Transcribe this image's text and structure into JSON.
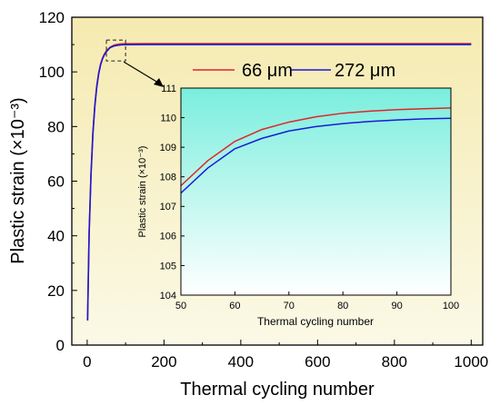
{
  "chart_data": [
    {
      "type": "line",
      "xlabel": "Thermal cycling number",
      "ylabel": "Plastic strain (×10⁻³)",
      "xlim": [
        -40,
        1030
      ],
      "ylim": [
        0,
        120
      ],
      "xticks": [
        0,
        200,
        400,
        600,
        800,
        1000
      ],
      "yticks": [
        0,
        20,
        40,
        60,
        80,
        100,
        120
      ],
      "xtick_labels": [
        "0",
        "200",
        "400",
        "600",
        "800",
        "1000"
      ],
      "ytick_labels": [
        "0",
        "20",
        "40",
        "60",
        "80",
        "100",
        "120"
      ],
      "background": [
        "#fbf9e6",
        "#f5eab0"
      ],
      "grid": false,
      "legend": {
        "placement": "top-right"
      },
      "series": [
        {
          "name": "66 μm",
          "color": "#e0242a",
          "x": [
            1,
            5,
            10,
            15,
            20,
            25,
            30,
            35,
            40,
            45,
            50,
            60,
            70,
            80,
            90,
            100,
            150,
            200,
            300,
            400,
            500,
            600,
            700,
            800,
            900,
            1000
          ],
          "y": [
            9,
            41,
            63,
            78,
            88,
            95,
            99.7,
            102.9,
            105.1,
            106.6,
            107.7,
            109.1,
            109.8,
            110.1,
            110.25,
            110.3,
            110.35,
            110.35,
            110.35,
            110.35,
            110.35,
            110.35,
            110.35,
            110.35,
            110.35,
            110.35
          ]
        },
        {
          "name": "272 μm",
          "color": "#1a1ad6",
          "x": [
            1,
            5,
            10,
            15,
            20,
            25,
            30,
            35,
            40,
            45,
            50,
            60,
            70,
            80,
            90,
            100,
            150,
            200,
            300,
            400,
            500,
            600,
            700,
            800,
            900,
            1000
          ],
          "y": [
            9,
            40.5,
            62.5,
            77.5,
            87.5,
            94.5,
            99.3,
            102.6,
            104.8,
            106.3,
            107.4,
            108.9,
            109.5,
            109.75,
            109.9,
            109.95,
            110.0,
            110.0,
            110.0,
            110.0,
            110.0,
            110.0,
            110.0,
            110.0,
            110.0,
            110.0
          ]
        }
      ],
      "zoom_box": {
        "x": [
          50,
          100
        ],
        "y": [
          104,
          111
        ]
      }
    },
    {
      "type": "line",
      "role": "inset",
      "xlabel": "Thermal cycling number",
      "ylabel": "Plastic strain (×10⁻³)",
      "xlim": [
        50,
        100
      ],
      "ylim": [
        104,
        111
      ],
      "xticks": [
        50,
        60,
        70,
        80,
        90,
        100
      ],
      "yticks": [
        104,
        105,
        106,
        107,
        108,
        109,
        110,
        111
      ],
      "xtick_labels": [
        "50",
        "60",
        "70",
        "80",
        "90",
        "100"
      ],
      "ytick_labels": [
        "104",
        "105",
        "106",
        "107",
        "108",
        "109",
        "110",
        "111"
      ],
      "background": [
        "#7aeedd",
        "#ffffff"
      ],
      "grid": false,
      "series": [
        {
          "name": "66 μm",
          "color": "#e0242a",
          "x": [
            50,
            55,
            60,
            65,
            70,
            75,
            80,
            85,
            90,
            95,
            100
          ],
          "y": [
            107.7,
            108.55,
            109.2,
            109.6,
            109.85,
            110.03,
            110.15,
            110.22,
            110.27,
            110.3,
            110.33
          ]
        },
        {
          "name": "272 μm",
          "color": "#1a1ad6",
          "x": [
            50,
            55,
            60,
            65,
            70,
            75,
            80,
            85,
            90,
            95,
            100
          ],
          "y": [
            107.45,
            108.3,
            108.95,
            109.3,
            109.55,
            109.7,
            109.8,
            109.87,
            109.92,
            109.96,
            109.98
          ]
        }
      ]
    }
  ]
}
